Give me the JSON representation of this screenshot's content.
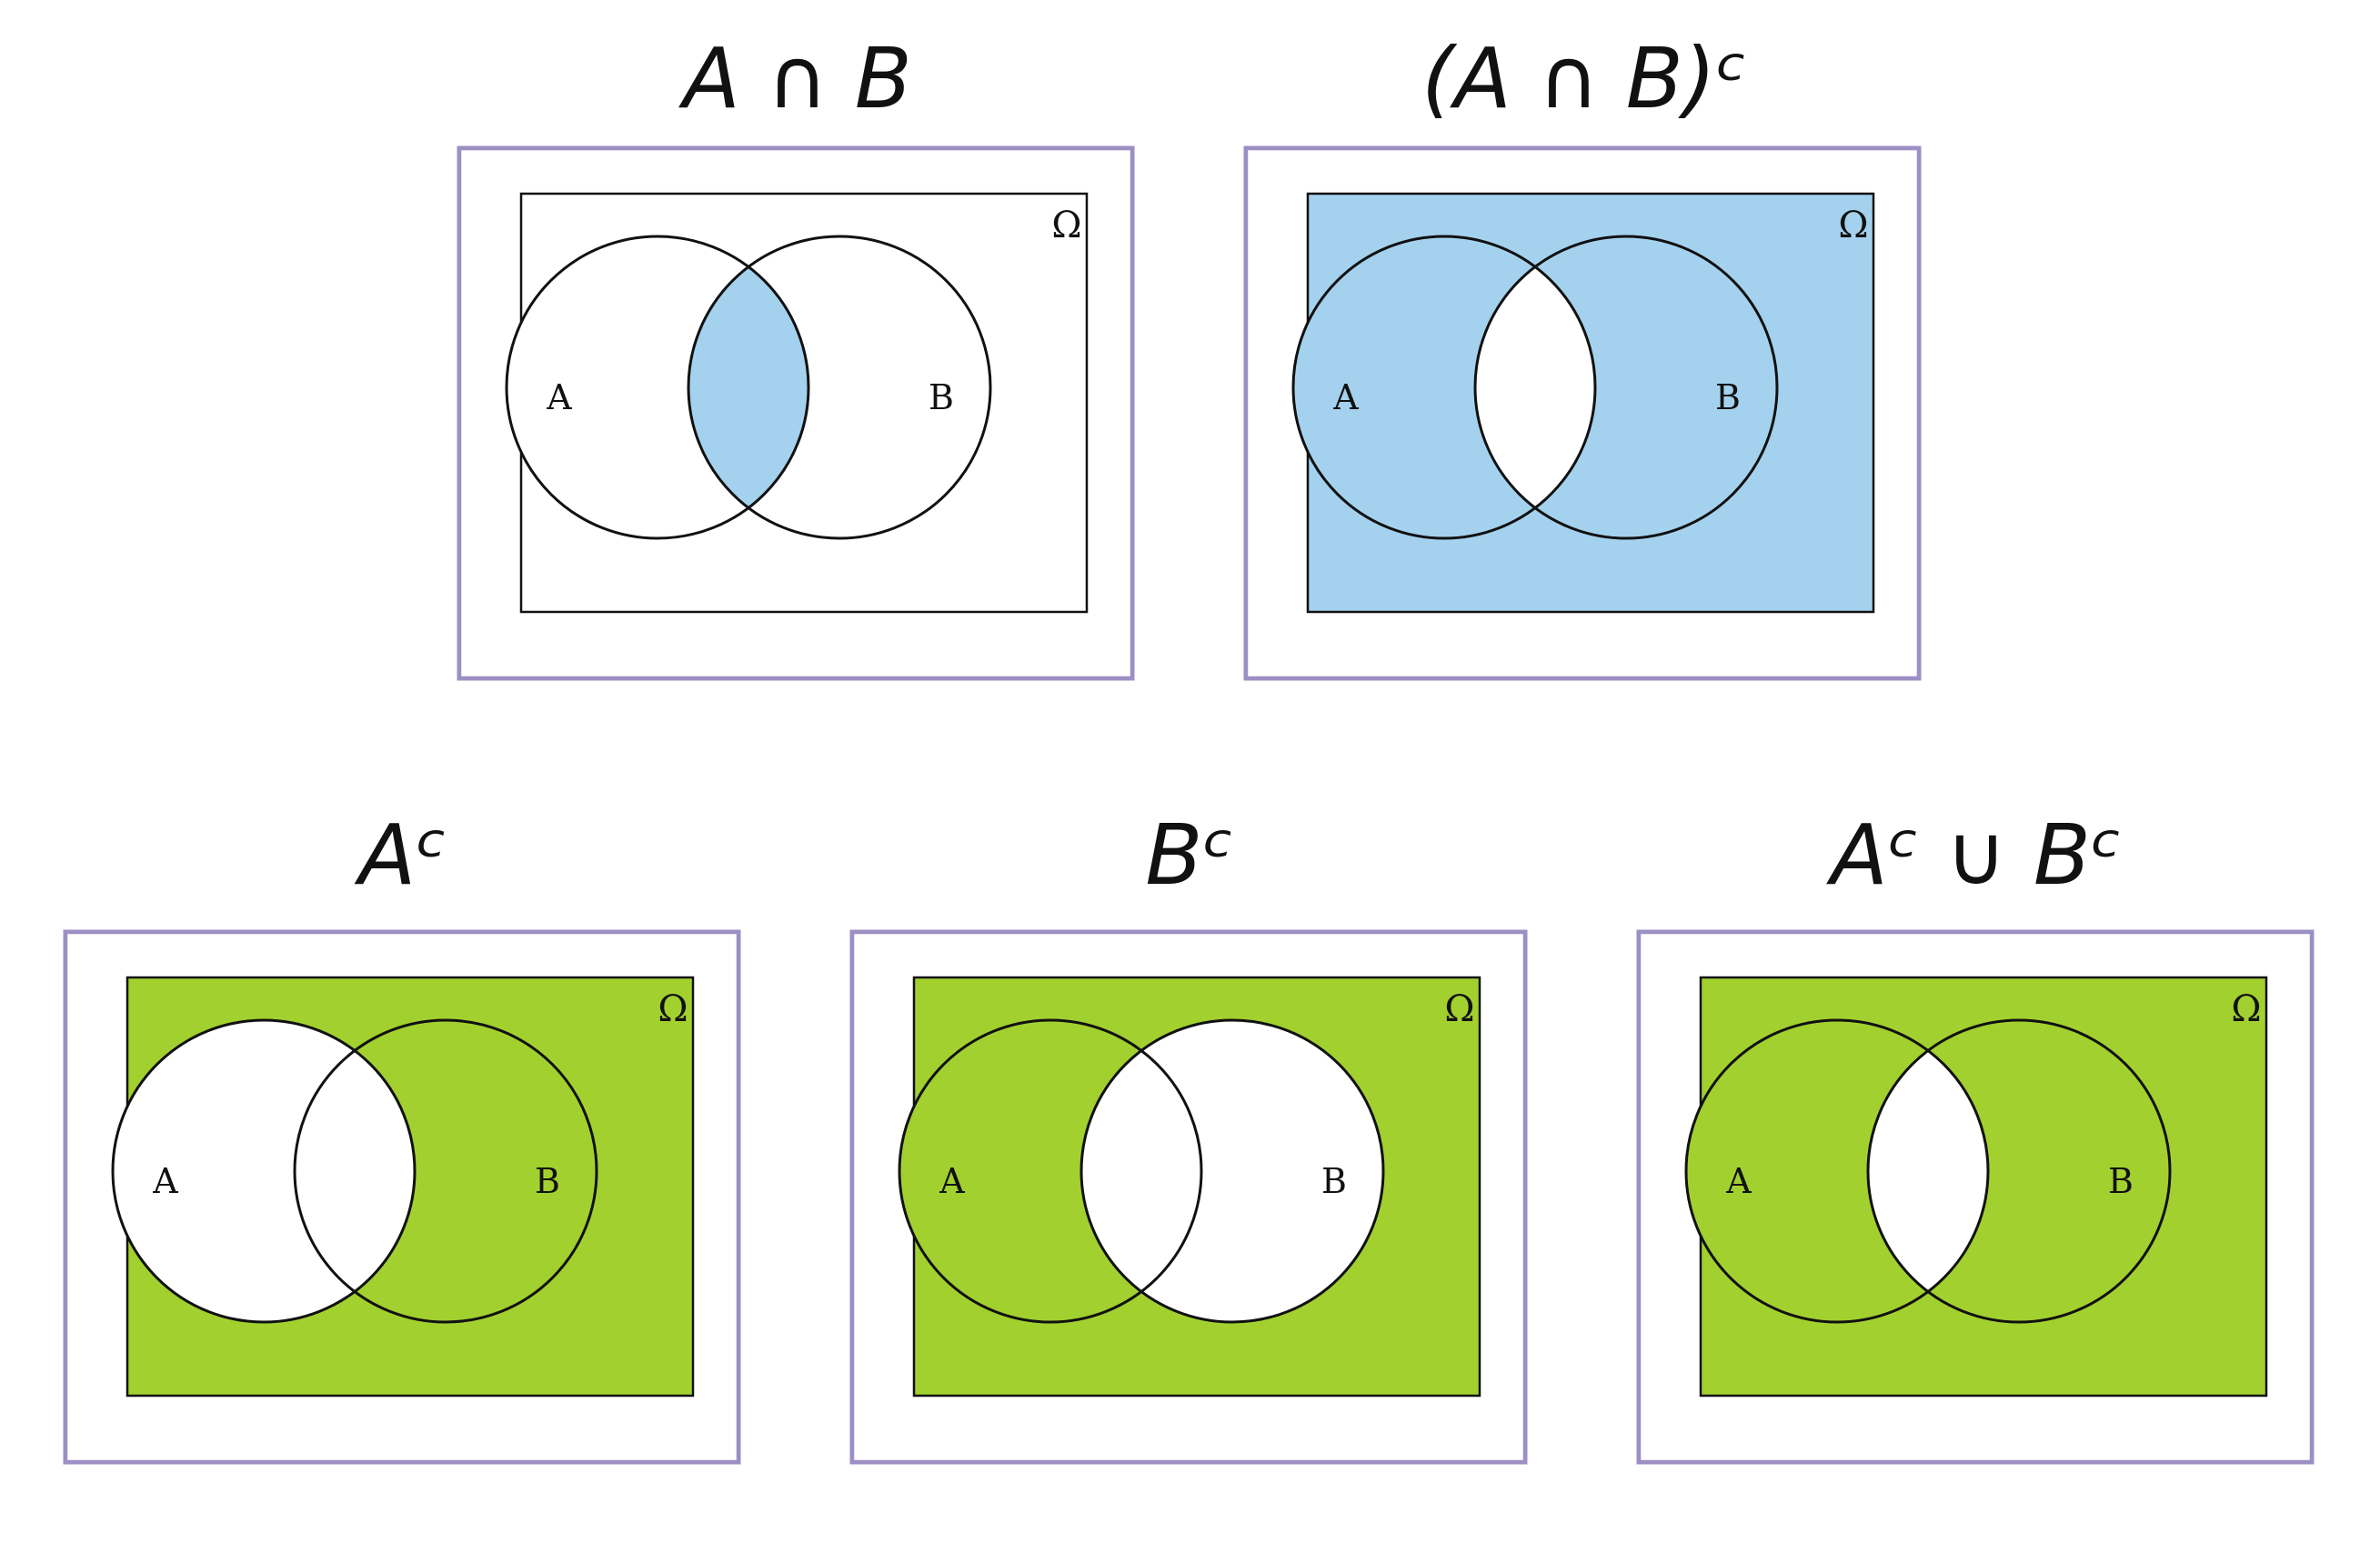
{
  "colors": {
    "blue_fill": "#a4d2ee",
    "green_fill": "#a2d12f",
    "frame_border": "#9b8fc4",
    "outline": "#111111",
    "background": "#ffffff"
  },
  "panels": [
    {
      "id": "a-intersect-b",
      "title": "A ∩ B",
      "fill_color": "blue",
      "background_filled": false,
      "shade": [
        "AB"
      ],
      "universe_label": "Ω",
      "set_a_label": "A",
      "set_b_label": "B"
    },
    {
      "id": "a-intersect-b-complement",
      "title": "(A ∩ B)ᶜ",
      "fill_color": "blue",
      "background_filled": true,
      "shade": [
        "A_only",
        "B_only"
      ],
      "universe_label": "Ω",
      "set_a_label": "A",
      "set_b_label": "B"
    },
    {
      "id": "a-complement",
      "title": "Aᶜ",
      "fill_color": "green",
      "background_filled": true,
      "shade": [
        "B_only"
      ],
      "universe_label": "Ω",
      "set_a_label": "A",
      "set_b_label": "B"
    },
    {
      "id": "b-complement",
      "title": "Bᶜ",
      "fill_color": "green",
      "background_filled": true,
      "shade": [
        "A_only"
      ],
      "universe_label": "Ω",
      "set_a_label": "A",
      "set_b_label": "B"
    },
    {
      "id": "a-complement-union-b-complement",
      "title": "Aᶜ ∪ Bᶜ",
      "fill_color": "green",
      "background_filled": true,
      "shade": [
        "A_only",
        "B_only"
      ],
      "universe_label": "Ω",
      "set_a_label": "A",
      "set_b_label": "B"
    }
  ]
}
